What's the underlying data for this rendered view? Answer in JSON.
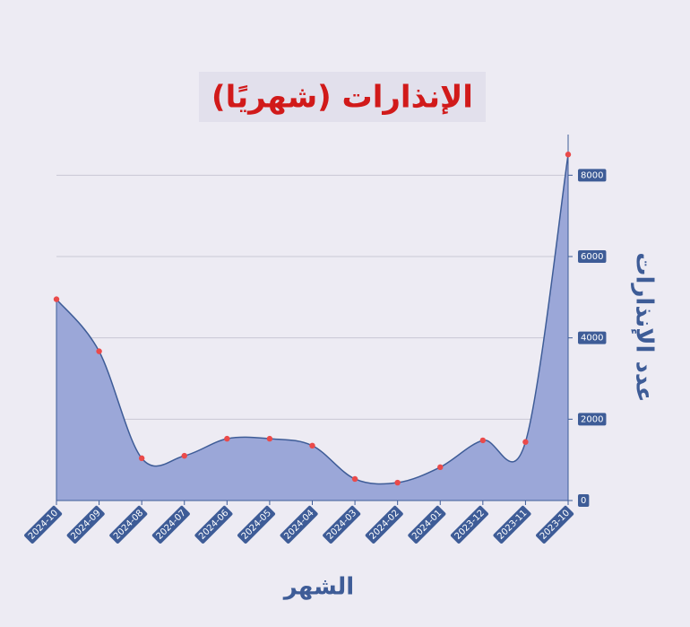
{
  "chart_data": {
    "type": "area",
    "title": "الإنذارات (شهريًا)",
    "x_label": "الشهر",
    "y_label": "عدد الإنذارات",
    "categories": [
      "2024-10",
      "2024-09",
      "2024-08",
      "2024-07",
      "2024-06",
      "2024-05",
      "2024-04",
      "2024-03",
      "2024-02",
      "2024-01",
      "2023-12",
      "2023-11",
      "2023-10"
    ],
    "values": [
      4950,
      3670,
      1040,
      1100,
      1520,
      1520,
      1350,
      530,
      440,
      820,
      1480,
      1440,
      8510
    ],
    "color": "#9ba7d8",
    "line_color": "#3e5c97",
    "point_color": "#ea4a4a",
    "ylim": [
      0,
      9000
    ],
    "yticks": [
      0,
      2000,
      4000,
      6000,
      8000
    ],
    "grid": true
  }
}
